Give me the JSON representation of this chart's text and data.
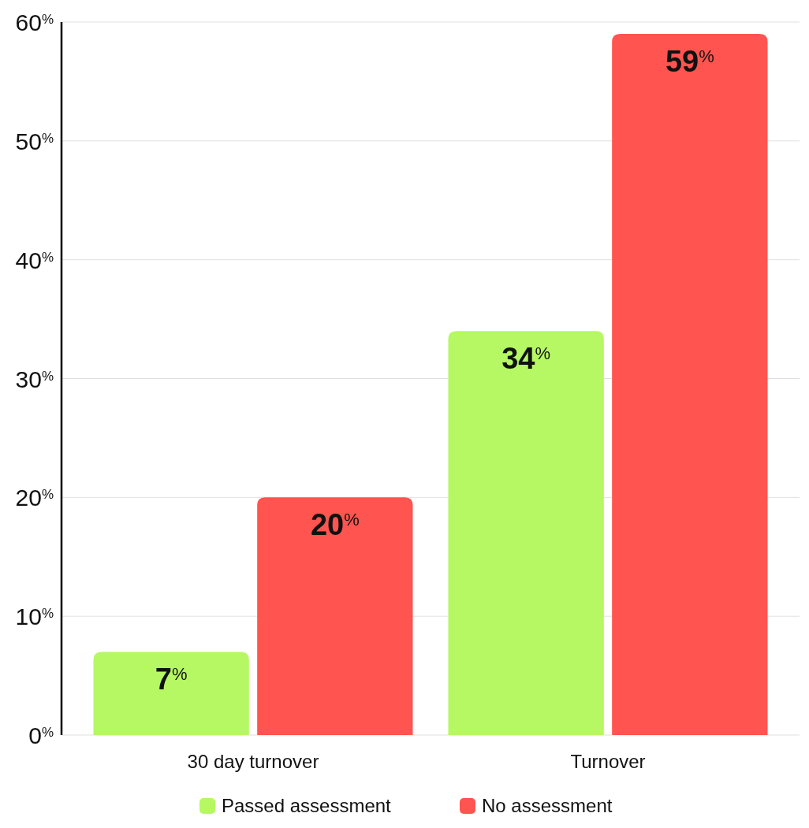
{
  "chart_data": {
    "type": "bar",
    "categories": [
      "30 day turnover",
      "Turnover"
    ],
    "series": [
      {
        "name": "Passed assessment",
        "color": "#b5f863",
        "values": [
          7,
          34
        ],
        "value_labels": [
          "7$^{%}$",
          "34$^{%}$"
        ]
      },
      {
        "name": "No assessment",
        "color": "#ff544f",
        "values": [
          20,
          59
        ],
        "value_labels": [
          "20$^{%}$",
          "59$^{%}$"
        ]
      }
    ],
    "ylim": [
      0,
      60
    ],
    "yticks": [
      {
        "value": 0,
        "label": "0$^{%}$"
      },
      {
        "value": 10,
        "label": "10$^{%}$"
      },
      {
        "value": 20,
        "label": "20$^{%}$"
      },
      {
        "value": 30,
        "label": "30$^{%}$"
      },
      {
        "value": 40,
        "label": "40$^{%}$"
      },
      {
        "value": 50,
        "label": "50$^{%}$"
      },
      {
        "value": 60,
        "label": "60$^{%}$"
      }
    ],
    "grid": "y",
    "legend": "bottom"
  }
}
